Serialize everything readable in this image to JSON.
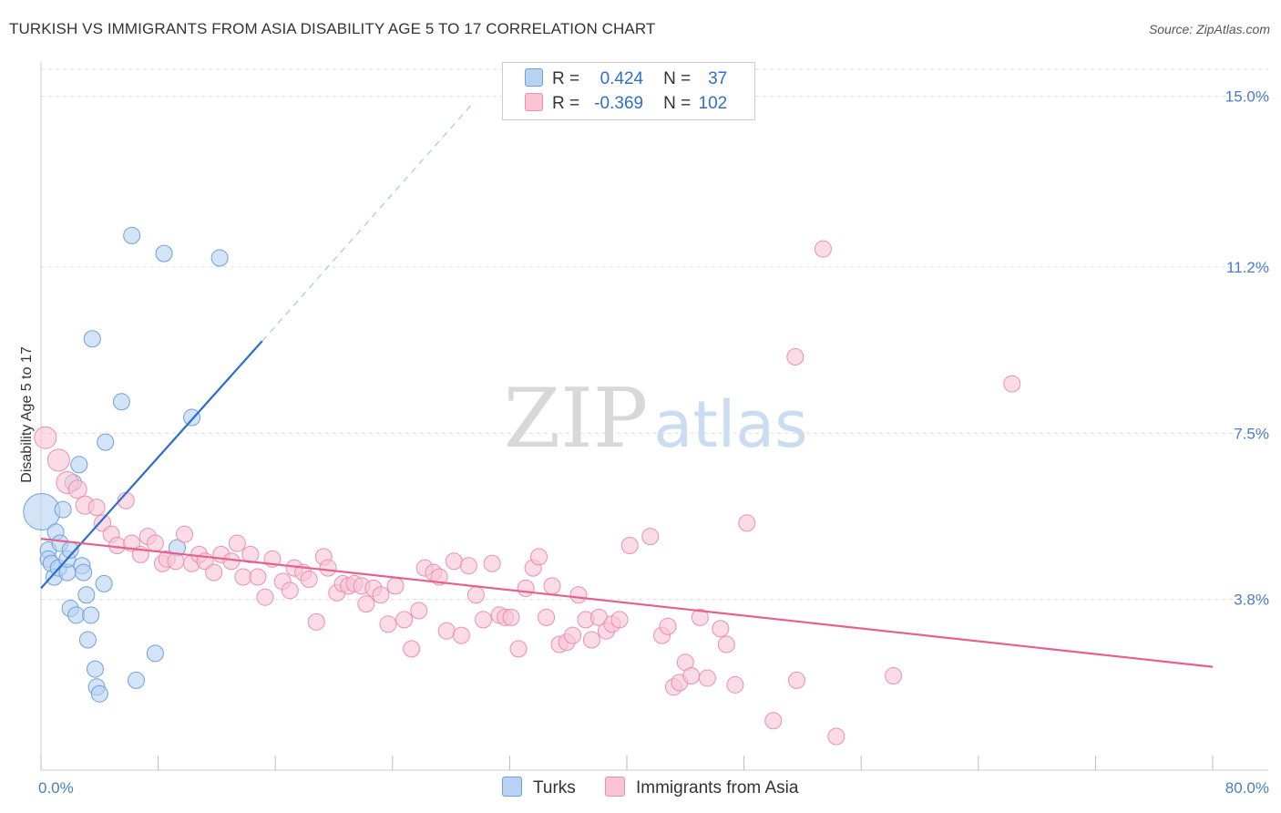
{
  "title": "TURKISH VS IMMIGRANTS FROM ASIA DISABILITY AGE 5 TO 17 CORRELATION CHART",
  "source": "Source: ZipAtlas.com",
  "watermark": {
    "zip": "ZIP",
    "atlas": "atlas"
  },
  "legend": {
    "r_label": "R =",
    "n_label": "N =",
    "rows": [
      {
        "name": "Turks",
        "r": "0.424",
        "n": "37",
        "fill": "#b8d2f2",
        "stroke": "#6f9fdc"
      },
      {
        "name": "Immigrants from Asia",
        "r": "-0.369",
        "n": "102",
        "fill": "#f9c5d5",
        "stroke": "#ec8fae"
      }
    ]
  },
  "chart_data": {
    "type": "scatter",
    "title": "TURKISH VS IMMIGRANTS FROM ASIA DISABILITY AGE 5 TO 17 CORRELATION CHART",
    "xlabel": "",
    "ylabel": "Disability Age 5 to 17",
    "xlim": [
      0,
      80
    ],
    "ylim": [
      0,
      15.6
    ],
    "x_tick_labels": [
      "0.0%",
      "80.0%"
    ],
    "y_ticks": [
      3.8,
      7.5,
      11.2,
      15.0
    ],
    "y_tick_labels": [
      "3.8%",
      "7.5%",
      "11.2%",
      "15.0%"
    ],
    "grid": true,
    "series": [
      {
        "name": "Turks",
        "color": "#6f9fdc",
        "fill": "#b8d2f2",
        "line_color": "#2a6dd0",
        "trend": {
          "x0": 0,
          "y0": 4.05,
          "x1": 15.1,
          "y1": 9.55,
          "dash_x1": 29.5,
          "dash_y1": 14.85
        },
        "points": [
          [
            0.05,
            5.75,
            20
          ],
          [
            0.5,
            4.9,
            9
          ],
          [
            0.5,
            4.7,
            9
          ],
          [
            0.7,
            4.6,
            9
          ],
          [
            0.9,
            4.3,
            9
          ],
          [
            1.0,
            5.3,
            9
          ],
          [
            1.2,
            4.5,
            9
          ],
          [
            1.3,
            5.05,
            9
          ],
          [
            1.5,
            5.8,
            9
          ],
          [
            1.8,
            4.4,
            9
          ],
          [
            1.8,
            4.7,
            9
          ],
          [
            2.0,
            4.9,
            9
          ],
          [
            2.0,
            3.6,
            9
          ],
          [
            2.2,
            6.4,
            9
          ],
          [
            2.4,
            3.45,
            9
          ],
          [
            2.6,
            6.8,
            9
          ],
          [
            2.8,
            4.55,
            9
          ],
          [
            2.9,
            4.4,
            9
          ],
          [
            3.1,
            3.9,
            9
          ],
          [
            3.2,
            2.9,
            9
          ],
          [
            3.4,
            3.45,
            9
          ],
          [
            3.5,
            9.6,
            9
          ],
          [
            3.7,
            2.25,
            9
          ],
          [
            3.8,
            1.85,
            9
          ],
          [
            4.0,
            1.7,
            9
          ],
          [
            4.3,
            4.15,
            9
          ],
          [
            4.4,
            7.3,
            9
          ],
          [
            5.5,
            8.2,
            9
          ],
          [
            6.2,
            11.9,
            9
          ],
          [
            6.5,
            2.0,
            9
          ],
          [
            7.8,
            2.6,
            9
          ],
          [
            8.4,
            11.5,
            9
          ],
          [
            9.3,
            4.95,
            9
          ],
          [
            10.3,
            7.85,
            9
          ],
          [
            12.2,
            11.4,
            9
          ]
        ]
      },
      {
        "name": "Immigrants from Asia",
        "color": "#ec8fae",
        "fill": "#f9c5d5",
        "line_color": "#e5608e",
        "trend": {
          "x0": 0,
          "y0": 5.15,
          "x1": 80.0,
          "y1": 2.3
        },
        "points": [
          [
            0.3,
            7.4,
            12
          ],
          [
            1.2,
            6.9,
            12
          ],
          [
            1.8,
            6.4,
            12
          ],
          [
            2.5,
            6.25,
            10
          ],
          [
            3.0,
            5.9,
            10
          ],
          [
            3.8,
            5.85,
            9
          ],
          [
            4.2,
            5.5,
            9
          ],
          [
            4.8,
            5.25,
            9
          ],
          [
            5.2,
            5.0,
            9
          ],
          [
            5.8,
            6.0,
            9
          ],
          [
            6.2,
            5.05,
            9
          ],
          [
            6.8,
            4.8,
            9
          ],
          [
            7.3,
            5.2,
            9
          ],
          [
            7.8,
            5.05,
            9
          ],
          [
            8.3,
            4.6,
            9
          ],
          [
            8.6,
            4.7,
            9
          ],
          [
            9.2,
            4.65,
            9
          ],
          [
            9.8,
            5.25,
            9
          ],
          [
            10.3,
            4.6,
            9
          ],
          [
            10.8,
            4.8,
            9
          ],
          [
            11.2,
            4.65,
            9
          ],
          [
            11.8,
            4.4,
            9
          ],
          [
            12.3,
            4.8,
            9
          ],
          [
            13.0,
            4.65,
            9
          ],
          [
            13.4,
            5.05,
            9
          ],
          [
            13.8,
            4.3,
            9
          ],
          [
            14.3,
            4.8,
            9
          ],
          [
            14.8,
            4.3,
            9
          ],
          [
            15.3,
            3.85,
            9
          ],
          [
            15.8,
            4.7,
            9
          ],
          [
            16.5,
            4.2,
            9
          ],
          [
            17.0,
            4.0,
            9
          ],
          [
            17.3,
            4.5,
            9
          ],
          [
            17.9,
            4.4,
            9
          ],
          [
            18.3,
            4.25,
            9
          ],
          [
            18.8,
            3.3,
            9
          ],
          [
            19.3,
            4.75,
            9
          ],
          [
            19.6,
            4.5,
            9
          ],
          [
            20.2,
            3.95,
            9
          ],
          [
            20.6,
            4.15,
            9
          ],
          [
            21.0,
            4.1,
            9
          ],
          [
            21.4,
            4.15,
            9
          ],
          [
            21.9,
            4.1,
            9
          ],
          [
            22.2,
            3.7,
            9
          ],
          [
            22.7,
            4.05,
            9
          ],
          [
            23.2,
            3.9,
            9
          ],
          [
            23.7,
            3.25,
            9
          ],
          [
            24.2,
            4.1,
            9
          ],
          [
            24.8,
            3.35,
            9
          ],
          [
            25.3,
            2.7,
            9
          ],
          [
            25.8,
            3.55,
            9
          ],
          [
            26.2,
            4.5,
            9
          ],
          [
            26.8,
            4.4,
            9
          ],
          [
            27.2,
            4.3,
            9
          ],
          [
            27.7,
            3.1,
            9
          ],
          [
            28.2,
            4.65,
            9
          ],
          [
            28.7,
            3.0,
            9
          ],
          [
            29.2,
            4.55,
            9
          ],
          [
            29.7,
            3.9,
            9
          ],
          [
            30.2,
            3.35,
            9
          ],
          [
            30.8,
            4.6,
            9
          ],
          [
            31.3,
            3.45,
            9
          ],
          [
            31.7,
            3.4,
            9
          ],
          [
            32.1,
            3.4,
            9
          ],
          [
            32.6,
            2.7,
            9
          ],
          [
            33.1,
            4.05,
            9
          ],
          [
            33.6,
            4.5,
            9
          ],
          [
            34.0,
            4.75,
            9
          ],
          [
            34.5,
            3.4,
            9
          ],
          [
            34.9,
            4.1,
            9
          ],
          [
            35.4,
            2.8,
            9
          ],
          [
            35.9,
            2.85,
            9
          ],
          [
            36.3,
            3.0,
            9
          ],
          [
            36.7,
            3.9,
            9
          ],
          [
            37.2,
            3.35,
            9
          ],
          [
            37.6,
            2.9,
            9
          ],
          [
            38.1,
            3.4,
            9
          ],
          [
            38.6,
            3.1,
            9
          ],
          [
            39.0,
            3.25,
            9
          ],
          [
            39.5,
            3.35,
            9
          ],
          [
            40.2,
            5.0,
            9
          ],
          [
            41.6,
            5.2,
            9
          ],
          [
            42.4,
            3.0,
            9
          ],
          [
            42.8,
            3.2,
            9
          ],
          [
            43.2,
            1.85,
            9
          ],
          [
            43.6,
            1.95,
            9
          ],
          [
            44.0,
            2.4,
            9
          ],
          [
            44.4,
            2.1,
            9
          ],
          [
            45.0,
            3.4,
            9
          ],
          [
            45.5,
            2.05,
            9
          ],
          [
            46.4,
            3.15,
            9
          ],
          [
            46.8,
            2.8,
            9
          ],
          [
            47.4,
            1.9,
            9
          ],
          [
            48.2,
            5.5,
            9
          ],
          [
            50.0,
            1.1,
            9
          ],
          [
            51.5,
            9.2,
            9
          ],
          [
            51.6,
            2.0,
            9
          ],
          [
            53.4,
            11.6,
            9
          ],
          [
            54.3,
            0.75,
            9
          ],
          [
            58.2,
            2.1,
            9
          ],
          [
            66.3,
            8.6,
            9
          ]
        ]
      }
    ]
  }
}
